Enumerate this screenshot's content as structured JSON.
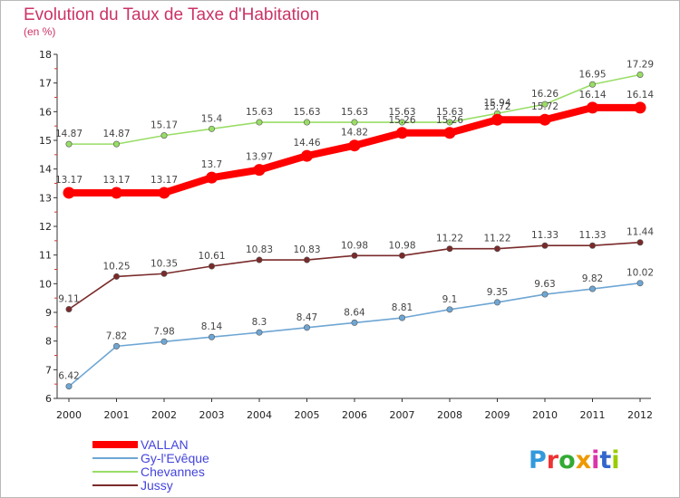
{
  "title": "Evolution du Taux de Taxe d'Habitation",
  "subtitle": "(en %)",
  "logo": {
    "text": "Proxiti",
    "colors": [
      "#3399dd",
      "#ee3333",
      "#33aa33",
      "#ee9900",
      "#dd33aa",
      "#3366cc",
      "#99cc00"
    ]
  },
  "chart_data": {
    "type": "line",
    "title": "Evolution du Taux de Taxe d'Habitation",
    "ylabel": "(en %)",
    "xlabel": "",
    "x": [
      "2000",
      "2001",
      "2002",
      "2003",
      "2004",
      "2005",
      "2006",
      "2007",
      "2008",
      "2009",
      "2010",
      "2011",
      "2012"
    ],
    "ylim": [
      6,
      18
    ],
    "yticks": [
      "6",
      "7",
      "8",
      "9",
      "10",
      "11",
      "12",
      "13",
      "14",
      "15",
      "16",
      "17",
      "18"
    ],
    "grid": false,
    "legend_position": "bottom-left",
    "series": [
      {
        "name": "VALLAN",
        "color": "#ff0000",
        "emphasis": true,
        "values": [
          13.17,
          13.17,
          13.17,
          13.7,
          13.97,
          14.46,
          14.82,
          15.26,
          15.26,
          15.72,
          15.72,
          16.14,
          16.14
        ],
        "labels": [
          "13.17",
          "13.17",
          "13.17",
          "13.7",
          "13.97",
          "14.46",
          "14.82",
          "15.26",
          "15.26",
          "15.72",
          "15.72",
          "16.14",
          "16.14"
        ]
      },
      {
        "name": "Gy-l'Evêque",
        "color": "#6ea6d4",
        "emphasis": false,
        "values": [
          6.42,
          7.82,
          7.98,
          8.14,
          8.3,
          8.47,
          8.64,
          8.81,
          9.1,
          9.35,
          9.63,
          9.82,
          10.02
        ],
        "labels": [
          "6.42",
          "7.82",
          "7.98",
          "8.14",
          "8.3",
          "8.47",
          "8.64",
          "8.81",
          "9.1",
          "9.35",
          "9.63",
          "9.82",
          "10.02"
        ]
      },
      {
        "name": "Chevannes",
        "color": "#99dd66",
        "emphasis": false,
        "values": [
          14.87,
          14.87,
          15.17,
          15.4,
          15.63,
          15.63,
          15.63,
          15.63,
          15.63,
          15.94,
          16.26,
          16.95,
          17.29
        ],
        "labels": [
          "14.87",
          "14.87",
          "15.17",
          "15.4",
          "15.63",
          "15.63",
          "15.63",
          "15.63",
          "15.63",
          "15.94",
          "16.26",
          "16.95",
          "17.29"
        ]
      },
      {
        "name": "Jussy",
        "color": "#7a2a2a",
        "emphasis": false,
        "values": [
          9.11,
          10.25,
          10.35,
          10.61,
          10.83,
          10.83,
          10.98,
          10.98,
          11.22,
          11.22,
          11.33,
          11.33,
          11.44
        ],
        "labels": [
          "9.11",
          "10.25",
          "10.35",
          "10.61",
          "10.83",
          "10.83",
          "10.98",
          "10.98",
          "11.22",
          "11.22",
          "11.33",
          "11.33",
          "11.44"
        ]
      }
    ]
  }
}
